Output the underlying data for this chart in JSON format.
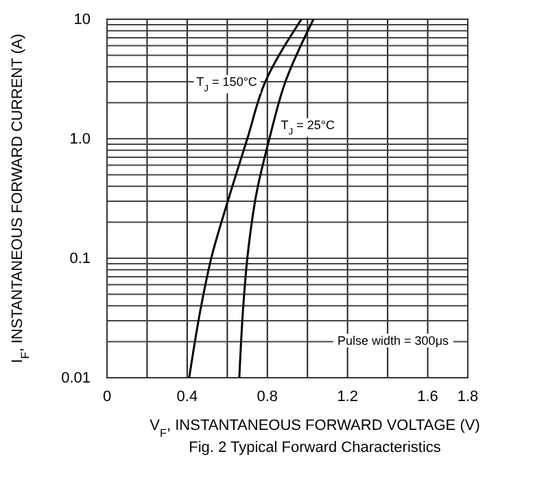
{
  "chart_data": {
    "type": "line",
    "title": "Fig. 2  Typical Forward Characteristics",
    "xlabel": "V$_{F}$, INSTANTANEOUS FORWARD VOLTAGE (V)",
    "ylabel": "I$_{F}$, INSTANTANEOUS FORWARD CURRENT (A)",
    "series": [
      {
        "color": "#000000",
        "x": [
          0.41,
          0.47,
          0.52,
          0.6,
          0.7,
          0.79,
          0.97
        ],
        "values": [
          0.01,
          0.04,
          0.1,
          0.29,
          1,
          3,
          10
        ]
      },
      {
        "color": "#000000",
        "x": [
          0.66,
          0.68,
          0.7,
          0.75,
          0.81,
          0.89,
          1.03
        ],
        "values": [
          0.01,
          0.04,
          0.1,
          0.38,
          1,
          3,
          10
        ]
      }
    ],
    "log": "y",
    "xlim": [
      0,
      1.8
    ],
    "ylim": [
      0.01,
      10
    ],
    "xticks": [
      0,
      {
        "value": 0.2,
        "label": null
      },
      0.4,
      {
        "value": 0.6,
        "label": null
      },
      0.8,
      {
        "value": 1.0,
        "label": null
      },
      1.2,
      {
        "value": 1.4,
        "label": null
      },
      1.6,
      1.8
    ],
    "yticks": [
      0.01,
      {
        "value": 0.02,
        "label": null
      },
      {
        "value": 0.03,
        "label": null
      },
      {
        "value": 0.04,
        "label": null
      },
      {
        "value": 0.05,
        "label": null
      },
      {
        "value": 0.06,
        "label": null
      },
      {
        "value": 0.07,
        "label": null
      },
      {
        "value": 0.08,
        "label": null
      },
      {
        "value": 0.09,
        "label": null
      },
      0.1,
      {
        "value": 0.2,
        "label": null
      },
      {
        "value": 0.3,
        "label": null
      },
      {
        "value": 0.4,
        "label": null
      },
      {
        "value": 0.5,
        "label": null
      },
      {
        "value": 0.6,
        "label": null
      },
      {
        "value": 0.7,
        "label": null
      },
      {
        "value": 0.8,
        "label": null
      },
      {
        "value": 0.9,
        "label": null
      },
      {
        "value": 1,
        "label": "1.0"
      },
      {
        "value": 2,
        "label": null
      },
      {
        "value": 3,
        "label": null
      },
      {
        "value": 4,
        "label": null
      },
      {
        "value": 5,
        "label": null
      },
      {
        "value": 6,
        "label": null
      },
      {
        "value": 7,
        "label": null
      },
      {
        "value": 8,
        "label": null
      },
      {
        "value": 9,
        "label": null
      },
      10
    ],
    "grid": true,
    "marker": "none",
    "line_style": "solid",
    "annotations": [
      {
        "text": "T$_{J}$ = 150°C",
        "x": 0.79,
        "y": 3
      },
      {
        "text": "T$_{J}$ = 25°C",
        "x": 0.84,
        "y": 1.3
      },
      "Pulse width = 300μs"
    ]
  }
}
